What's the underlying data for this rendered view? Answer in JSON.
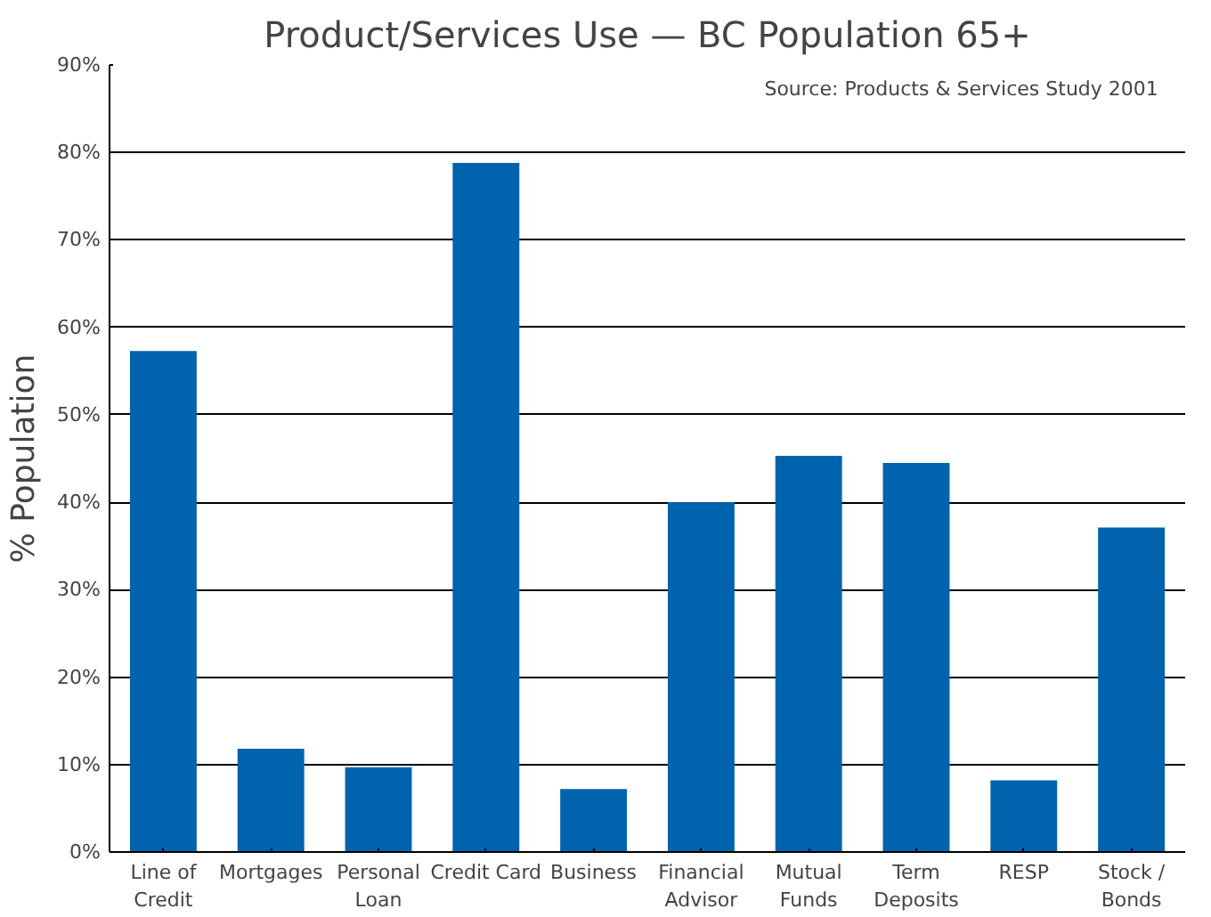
{
  "chart_data": {
    "type": "bar",
    "title": "Product/Services Use — BC Population 65+",
    "ylabel": "% Population",
    "annotations": [
      "Source: Products & Services Study 2001"
    ],
    "categories": [
      "Line of\nCredit",
      "Mortgages",
      "Personal\nLoan",
      "Credit Card",
      "Business",
      "Financial\nAdvisor",
      "Mutual\nFunds",
      "Term\nDeposits",
      "RESP",
      "Stock /\nBonds"
    ],
    "values": [
      57.3,
      11.8,
      9.7,
      78.8,
      7.2,
      40.0,
      45.3,
      44.5,
      8.2,
      37.1
    ],
    "color": "#0063ad",
    "ylim": [
      0,
      90
    ],
    "yticks": [
      {
        "value": 0,
        "label": "0%"
      },
      {
        "value": 10,
        "label": "10%"
      },
      {
        "value": 20,
        "label": "20%"
      },
      {
        "value": 30,
        "label": "30%"
      },
      {
        "value": 40,
        "label": "40%"
      },
      {
        "value": 50,
        "label": "50%"
      },
      {
        "value": 60,
        "label": "60%"
      },
      {
        "value": 70,
        "label": "70%"
      },
      {
        "value": 80,
        "label": "80%"
      },
      {
        "value": 90,
        "label": "90%"
      }
    ],
    "grid": "y"
  }
}
